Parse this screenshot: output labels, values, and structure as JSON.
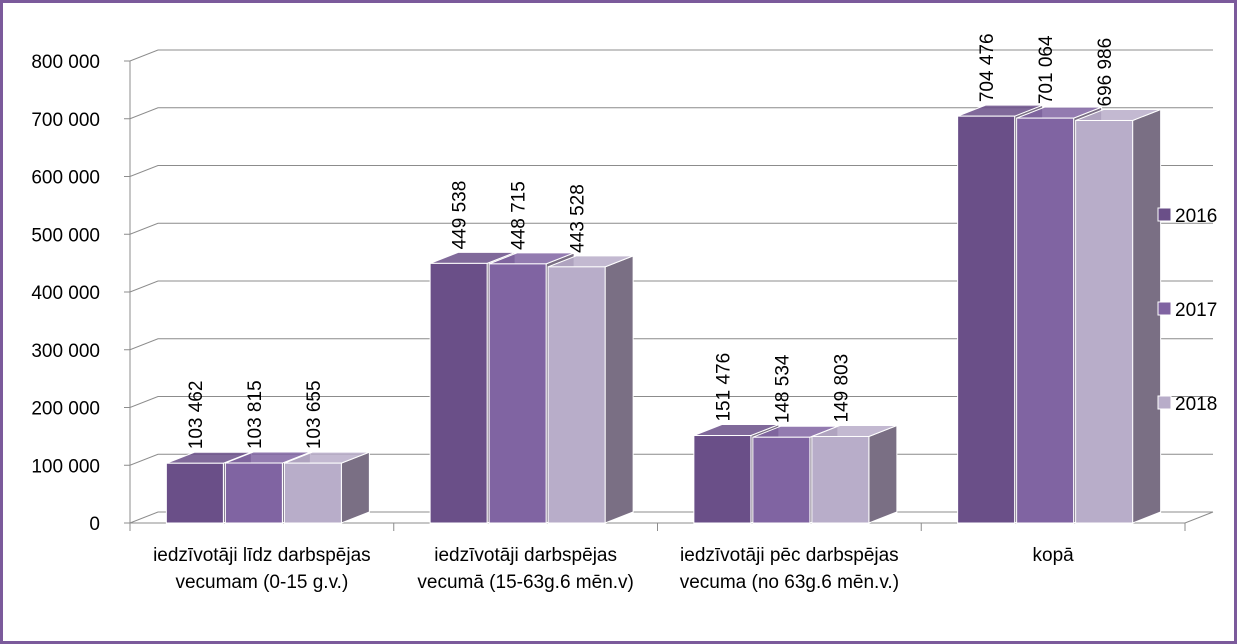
{
  "chart_data": {
    "type": "bar3d",
    "categories": [
      "iedzīvotāji līdz darbspējas vecumam (0-15 g.v.)",
      "iedzīvotāji darbspējas vecumā (15-63g.6 mēn.v)",
      "iedzīvotāji pēc darbspējas vecuma (no 63g.6 mēn.v.)",
      "kopā"
    ],
    "series": [
      {
        "name": "2016",
        "color": "#6a4f88",
        "values": [
          103462,
          449538,
          151476,
          704476
        ],
        "value_labels": [
          "103 462",
          "449 538",
          "151 476",
          "704 476"
        ]
      },
      {
        "name": "2017",
        "color": "#8064a2",
        "values": [
          103815,
          448715,
          148534,
          701064
        ],
        "value_labels": [
          "103 815",
          "448 715",
          "148 534",
          "701 064"
        ]
      },
      {
        "name": "2018",
        "color": "#b8adc9",
        "values": [
          103655,
          443528,
          149803,
          696986
        ],
        "value_labels": [
          "103 655",
          "443 528",
          "149 803",
          "696 986"
        ]
      }
    ],
    "ylim": [
      0,
      800000
    ],
    "yticks": [
      0,
      {
        "value": 100000,
        "label": "100 000"
      },
      {
        "value": 200000,
        "label": "200 000"
      },
      {
        "value": 300000,
        "label": "300 000"
      },
      {
        "value": 400000,
        "label": "400 000"
      },
      {
        "value": 500000,
        "label": "500 000"
      },
      {
        "value": 600000,
        "label": "600 000"
      },
      {
        "value": 700000,
        "label": "700 000"
      },
      {
        "value": 800000,
        "label": "800 000"
      }
    ],
    "grid": true,
    "legend": "right"
  }
}
